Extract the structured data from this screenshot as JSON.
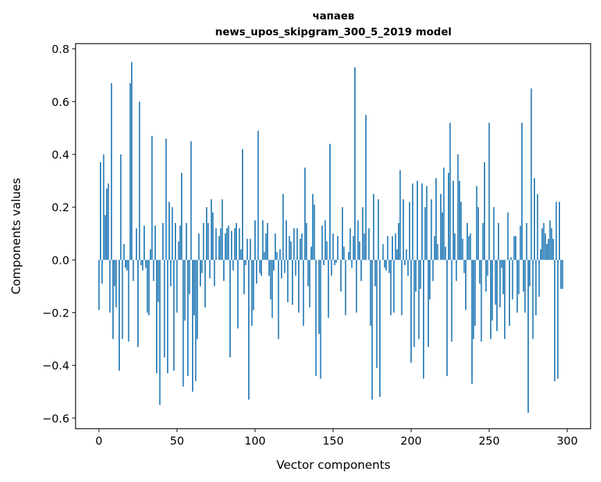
{
  "chart_data": {
    "type": "bar",
    "title_line1": "чапаев",
    "title_line2": "news_upos_skipgram_300_5_2019 model",
    "xlabel": "Vector components",
    "ylabel": "Components values",
    "xlim": [
      -15,
      315
    ],
    "ylim": [
      -0.64,
      0.82
    ],
    "x_ticks": [
      0,
      50,
      100,
      150,
      200,
      250,
      300
    ],
    "x_tick_labels": [
      "0",
      "50",
      "100",
      "150",
      "200",
      "250",
      "300"
    ],
    "y_ticks": [
      -0.6,
      -0.4,
      -0.2,
      0.0,
      0.2,
      0.4,
      0.6,
      0.8
    ],
    "y_tick_labels": [
      "−0.6",
      "−0.4",
      "−0.2",
      "0.0",
      "0.2",
      "0.4",
      "0.6",
      "0.8"
    ],
    "bar_color": "#1f77b4",
    "grid": false,
    "values": [
      -0.19,
      0.37,
      -0.09,
      0.4,
      0.17,
      0.27,
      0.29,
      -0.2,
      0.67,
      -0.3,
      -0.1,
      -0.18,
      0.0,
      -0.42,
      0.4,
      -0.3,
      0.06,
      -0.03,
      -0.04,
      -0.31,
      0.67,
      0.75,
      -0.08,
      0.0,
      0.12,
      -0.33,
      0.6,
      -0.02,
      -0.04,
      0.13,
      -0.03,
      -0.2,
      -0.21,
      0.04,
      0.47,
      -0.08,
      0.13,
      -0.43,
      -0.16,
      -0.55,
      0.0,
      0.14,
      -0.37,
      0.46,
      -0.43,
      0.22,
      -0.1,
      0.2,
      -0.42,
      0.14,
      -0.2,
      0.07,
      0.13,
      0.33,
      -0.48,
      -0.23,
      0.14,
      -0.44,
      -0.13,
      0.45,
      -0.5,
      -0.21,
      -0.46,
      -0.3,
      0.1,
      -0.1,
      -0.05,
      0.14,
      -0.18,
      0.2,
      0.14,
      -0.07,
      0.23,
      0.18,
      -0.1,
      0.12,
      0.0,
      0.09,
      0.12,
      0.23,
      -0.08,
      0.1,
      0.12,
      0.13,
      -0.37,
      0.11,
      -0.04,
      0.12,
      0.14,
      -0.26,
      0.12,
      0.04,
      0.42,
      -0.13,
      -0.02,
      0.08,
      -0.53,
      0.08,
      -0.25,
      -0.19,
      0.15,
      -0.09,
      0.49,
      -0.05,
      -0.06,
      0.15,
      0.03,
      0.1,
      0.14,
      -0.06,
      -0.15,
      -0.22,
      -0.04,
      0.1,
      0.03,
      -0.3,
      0.04,
      -0.07,
      0.25,
      -0.05,
      0.15,
      -0.16,
      0.09,
      0.07,
      -0.17,
      0.12,
      -0.06,
      0.12,
      -0.2,
      0.08,
      0.1,
      -0.25,
      0.35,
      0.14,
      -0.1,
      -0.18,
      0.05,
      0.25,
      0.21,
      -0.44,
      0.0,
      -0.28,
      -0.45,
      0.13,
      -0.02,
      0.15,
      0.07,
      -0.22,
      0.44,
      -0.06,
      0.1,
      -0.02,
      -0.01,
      0.09,
      0.0,
      -0.12,
      0.2,
      0.05,
      -0.21,
      0.0,
      0.03,
      0.12,
      -0.03,
      0.09,
      0.73,
      -0.2,
      0.15,
      0.07,
      -0.08,
      0.2,
      0.1,
      0.55,
      0.0,
      0.12,
      -0.25,
      -0.53,
      0.25,
      -0.1,
      -0.41,
      0.23,
      -0.52,
      0.0,
      0.06,
      -0.03,
      -0.04,
      0.09,
      -0.05,
      -0.21,
      0.09,
      -0.2,
      0.1,
      0.04,
      0.14,
      0.34,
      -0.21,
      0.23,
      -0.02,
      0.04,
      -0.06,
      0.22,
      -0.39,
      0.29,
      -0.33,
      -0.12,
      0.3,
      -0.3,
      -0.11,
      0.29,
      -0.45,
      0.2,
      0.28,
      -0.33,
      -0.15,
      0.23,
      -0.08,
      0.09,
      0.31,
      0.06,
      0.0,
      0.25,
      0.18,
      0.35,
      0.05,
      -0.44,
      0.33,
      0.52,
      -0.31,
      0.3,
      0.1,
      -0.08,
      0.4,
      0.3,
      0.22,
      0.08,
      -0.05,
      -0.19,
      0.14,
      0.09,
      0.1,
      -0.47,
      -0.3,
      -0.25,
      0.28,
      0.2,
      -0.09,
      -0.31,
      0.14,
      0.37,
      -0.12,
      -0.06,
      0.52,
      -0.3,
      -0.23,
      0.2,
      -0.17,
      -0.27,
      0.14,
      -0.18,
      -0.03,
      -0.13,
      -0.3,
      0.0,
      0.18,
      -0.25,
      0.01,
      -0.15,
      0.09,
      0.09,
      -0.2,
      -0.13,
      0.13,
      0.52,
      -0.12,
      -0.2,
      0.14,
      -0.58,
      -0.1,
      0.65,
      -0.3,
      0.31,
      -0.21,
      0.25,
      -0.14,
      0.04,
      0.12,
      0.14,
      0.1,
      0.06,
      0.08,
      0.15,
      0.12,
      0.08,
      -0.46,
      0.22,
      -0.45,
      0.22,
      -0.11,
      -0.11
    ]
  }
}
